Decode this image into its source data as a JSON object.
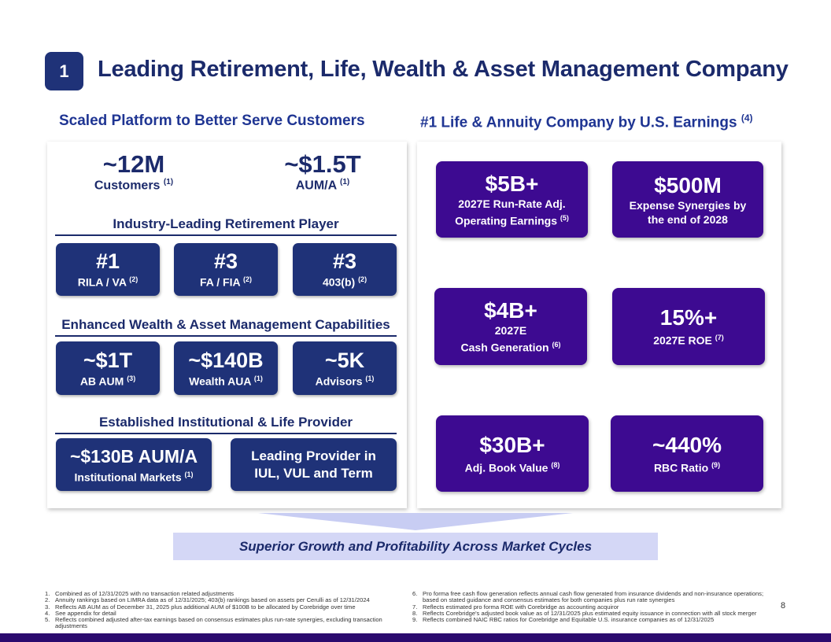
{
  "header": {
    "badge": "1",
    "title": "Leading Retirement, Life, Wealth & Asset Management Company"
  },
  "left": {
    "heading": "Scaled Platform to Better Serve Customers",
    "stats": [
      {
        "value": "~12M",
        "label": "Customers",
        "note": "(1)"
      },
      {
        "value": "~$1.5T",
        "label": "AUM/A",
        "note": "(1)"
      }
    ],
    "retirement": {
      "heading": "Industry-Leading Retirement Player",
      "boxes": [
        {
          "value": "#1",
          "label": "RILA / VA",
          "note": "(2)"
        },
        {
          "value": "#3",
          "label": "FA / FIA",
          "note": "(2)"
        },
        {
          "value": "#3",
          "label": "403(b)",
          "note": "(2)"
        }
      ]
    },
    "wealth": {
      "heading": "Enhanced Wealth & Asset Management Capabilities",
      "boxes": [
        {
          "value": "~$1T",
          "label": "AB AUM",
          "note": "(3)"
        },
        {
          "value": "~$140B",
          "label": "Wealth AUA",
          "note": "(1)"
        },
        {
          "value": "~5K",
          "label": "Advisors",
          "note": "(1)"
        }
      ]
    },
    "institutional": {
      "heading": "Established Institutional & Life Provider",
      "box1": {
        "value": "~$130B AUM/A",
        "label": "Institutional Markets",
        "note": "(1)"
      },
      "box2": {
        "line1": "Leading Provider in",
        "line2": "IUL, VUL and Term"
      }
    }
  },
  "right": {
    "heading": "#1 Life & Annuity Company by U.S. Earnings",
    "heading_note": "(4)",
    "boxes": [
      {
        "value": "$5B+",
        "line1": "2027E Run-Rate Adj.",
        "line2": "Operating Earnings",
        "note": "(5)"
      },
      {
        "value": "$500M",
        "line1": "Expense Synergies by",
        "line2": "the end of 2028",
        "note": ""
      },
      {
        "value": "$4B+",
        "line1": "2027E",
        "line2": "Cash Generation",
        "note": "(6)"
      },
      {
        "value": "15%+",
        "line1": "",
        "line2": "2027E ROE",
        "note": "(7)"
      },
      {
        "value": "$30B+",
        "line1": "",
        "line2": "Adj. Book Value",
        "note": "(8)"
      },
      {
        "value": "~440%",
        "line1": "",
        "line2": "RBC Ratio",
        "note": "(9)"
      }
    ]
  },
  "banner": "Superior Growth and Profitability Across Market Cycles",
  "footnotes_left": [
    {
      "n": "1.",
      "t": "Combined as of 12/31/2025 with no transaction related adjustments"
    },
    {
      "n": "2.",
      "t": "Annuity rankings based on LIMRA data as of 12/31/2025; 403(b) rankings based on assets per Cerulli as of 12/31/2024"
    },
    {
      "n": "3.",
      "t": "Reflects AB AUM as of December 31, 2025 plus additional AUM of $100B to be allocated by Corebridge over time"
    },
    {
      "n": "4.",
      "t": "See appendix for detail"
    },
    {
      "n": "5.",
      "t": "Reflects combined adjusted after-tax earnings based on consensus estimates plus run-rate synergies, excluding transaction adjustments"
    }
  ],
  "footnotes_right": [
    {
      "n": "6.",
      "t": "Pro forma free cash flow generation reflects annual cash flow generated from insurance dividends and non-insurance operations; based on stated guidance and consensus estimates for both companies plus run rate synergies"
    },
    {
      "n": "7.",
      "t": "Reflects estimated pro forma ROE with Corebridge as accounting acquiror"
    },
    {
      "n": "8.",
      "t": "Reflects Corebridge's adjusted book value as of 12/31/2025 plus estimated equity issuance in connection with all stock merger"
    },
    {
      "n": "9.",
      "t": "Reflects combined NAIC RBC ratios for Corebridge and Equitable U.S. insurance companies as of 12/31/2025"
    }
  ],
  "page_number": "8"
}
